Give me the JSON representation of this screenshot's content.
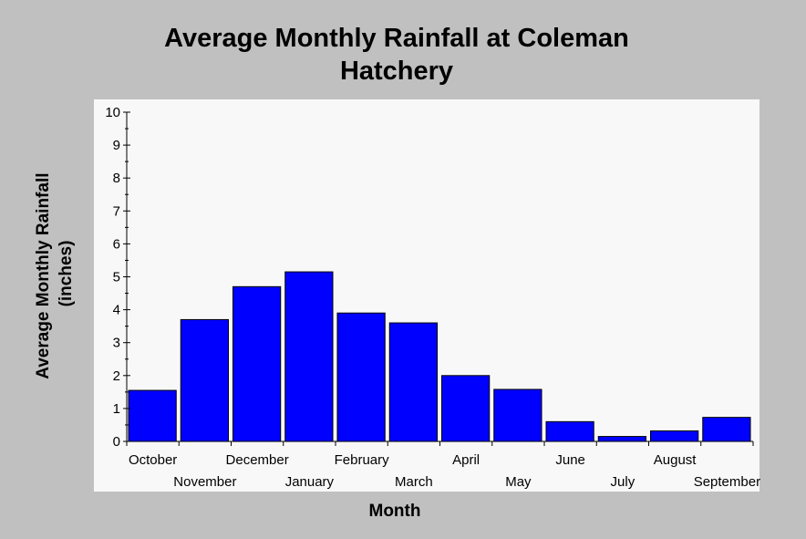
{
  "chart_data": {
    "type": "bar",
    "title_line1": "Average Monthly Rainfall at Coleman",
    "title_line2": "Hatchery",
    "xlabel": "Month",
    "ylabel_line1": "Average Monthly Rainfall",
    "ylabel_line2": "(inches)",
    "categories": [
      "October",
      "November",
      "December",
      "January",
      "February",
      "March",
      "April",
      "May",
      "June",
      "July",
      "August",
      "September"
    ],
    "values": [
      1.55,
      3.7,
      4.7,
      5.15,
      3.9,
      3.6,
      2.0,
      1.58,
      0.6,
      0.15,
      0.32,
      0.73
    ],
    "ylim": [
      0,
      10
    ],
    "yticks": [
      "0",
      "1",
      "2",
      "3",
      "4",
      "5",
      "6",
      "7",
      "8",
      "9",
      "10"
    ],
    "bar_color": "#0000ff",
    "plot_background": "#f8f8f8",
    "page_background": "#c0c0c0",
    "grid": false,
    "legend": "none"
  }
}
